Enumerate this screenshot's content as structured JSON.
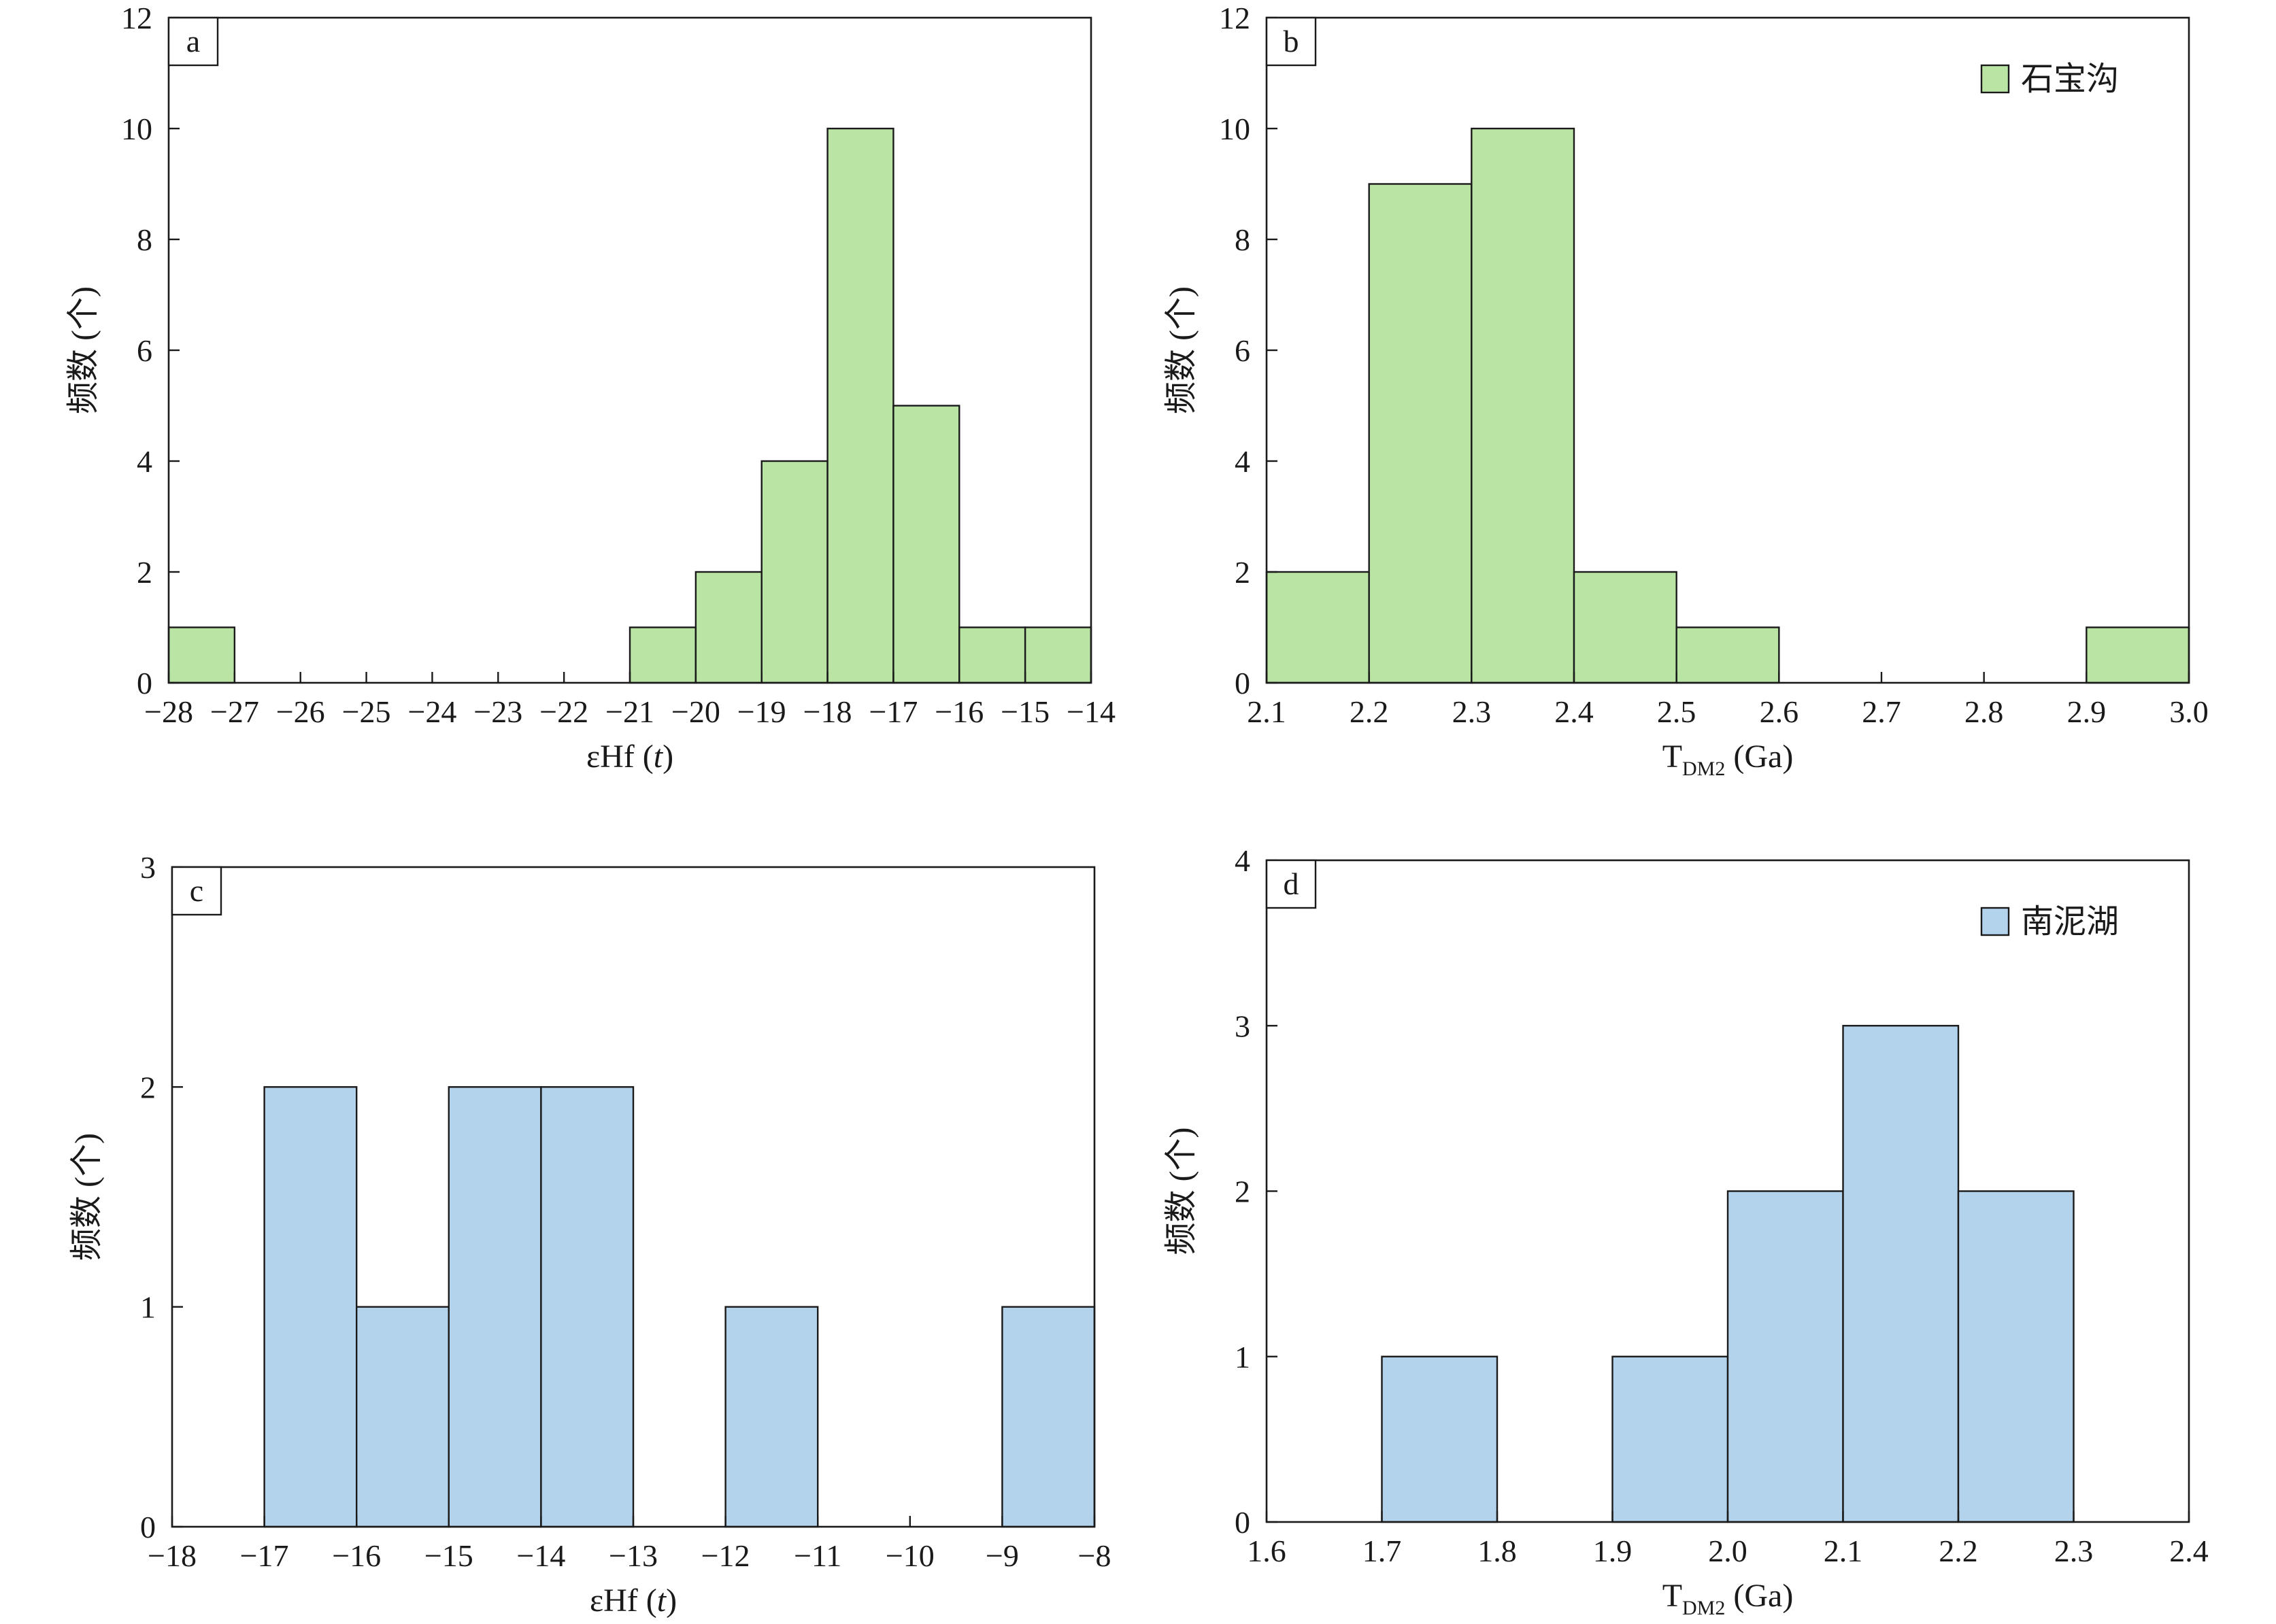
{
  "colors": {
    "green": "#b9e4a4",
    "blue": "#b3d2ec",
    "ink": "#1a1a1a"
  },
  "chart_data": [
    {
      "type": "bar",
      "id": "a",
      "panel_label": "a",
      "color": "#b9e4a4",
      "xlabel_parts": [
        "εHf (",
        "t",
        ")"
      ],
      "ylabel": "频数 (个)",
      "xlim": [
        -28,
        -14
      ],
      "ylim": [
        0,
        12
      ],
      "xticks": [
        -28,
        -27,
        -26,
        -25,
        -24,
        -23,
        -22,
        -21,
        -20,
        -19,
        -18,
        -17,
        -16,
        -15,
        -14
      ],
      "xtick_labels": [
        "−28",
        "−27",
        "−26",
        "−25",
        "−24",
        "−23",
        "−22",
        "−21",
        "−20",
        "−19",
        "−18",
        "−17",
        "−16",
        "−15",
        "−14"
      ],
      "yticks": [
        0,
        2,
        4,
        6,
        8,
        10,
        12
      ],
      "ytick_labels": [
        "0",
        "2",
        "4",
        "6",
        "8",
        "10",
        "12"
      ],
      "bins": [
        {
          "x0": -28.0,
          "x1": -27.0,
          "count": 1
        },
        {
          "x0": -21.0,
          "x1": -20.0,
          "count": 1
        },
        {
          "x0": -20.0,
          "x1": -19.0,
          "count": 2
        },
        {
          "x0": -19.0,
          "x1": -18.0,
          "count": 4
        },
        {
          "x0": -18.0,
          "x1": -17.0,
          "count": 10
        },
        {
          "x0": -17.0,
          "x1": -16.0,
          "count": 5
        },
        {
          "x0": -16.0,
          "x1": -15.0,
          "count": 1
        },
        {
          "x0": -15.0,
          "x1": -14.0,
          "count": 1
        }
      ],
      "legend": null
    },
    {
      "type": "bar",
      "id": "b",
      "panel_label": "b",
      "color": "#b9e4a4",
      "xlabel_parts": [
        "T",
        "DM2",
        " (Ga)"
      ],
      "ylabel": "频数 (个)",
      "xlim": [
        2.1,
        3.0
      ],
      "ylim": [
        0,
        12
      ],
      "xticks": [
        2.1,
        2.2,
        2.3,
        2.4,
        2.5,
        2.6,
        2.7,
        2.8,
        2.9,
        3.0
      ],
      "xtick_labels": [
        "2.1",
        "2.2",
        "2.3",
        "2.4",
        "2.5",
        "2.6",
        "2.7",
        "2.8",
        "2.9",
        "3.0"
      ],
      "yticks": [
        0,
        2,
        4,
        6,
        8,
        10,
        12
      ],
      "ytick_labels": [
        "0",
        "2",
        "4",
        "6",
        "8",
        "10",
        "12"
      ],
      "bins": [
        {
          "x0": 2.1,
          "x1": 2.2,
          "count": 2
        },
        {
          "x0": 2.2,
          "x1": 2.3,
          "count": 9
        },
        {
          "x0": 2.3,
          "x1": 2.4,
          "count": 10
        },
        {
          "x0": 2.4,
          "x1": 2.5,
          "count": 2
        },
        {
          "x0": 2.5,
          "x1": 2.6,
          "count": 1
        },
        {
          "x0": 2.9,
          "x1": 3.0,
          "count": 1
        }
      ],
      "legend": {
        "label": "石宝沟",
        "position": "top-right"
      }
    },
    {
      "type": "bar",
      "id": "c",
      "panel_label": "c",
      "color": "#b3d2ec",
      "xlabel_parts": [
        "εHf (",
        "t",
        ")"
      ],
      "ylabel": "频数 (个)",
      "xlim": [
        -18,
        -8
      ],
      "ylim": [
        0,
        3
      ],
      "xticks": [
        -18,
        -17,
        -16,
        -15,
        -14,
        -13,
        -12,
        -11,
        -10,
        -9,
        -8
      ],
      "xtick_labels": [
        "−18",
        "−17",
        "−16",
        "−15",
        "−14",
        "−13",
        "−12",
        "−11",
        "−10",
        "−9",
        "−8"
      ],
      "yticks": [
        0,
        1,
        2,
        3
      ],
      "ytick_labels": [
        "0",
        "1",
        "2",
        "3"
      ],
      "bins": [
        {
          "x0": -17.0,
          "x1": -16.0,
          "count": 2
        },
        {
          "x0": -16.0,
          "x1": -15.0,
          "count": 1
        },
        {
          "x0": -15.0,
          "x1": -14.0,
          "count": 2
        },
        {
          "x0": -14.0,
          "x1": -13.0,
          "count": 2
        },
        {
          "x0": -12.0,
          "x1": -11.0,
          "count": 1
        },
        {
          "x0": -9.0,
          "x1": -8.0,
          "count": 1
        }
      ],
      "legend": null
    },
    {
      "type": "bar",
      "id": "d",
      "panel_label": "d",
      "color": "#b3d2ec",
      "xlabel_parts": [
        "T",
        "DM2",
        " (Ga)"
      ],
      "ylabel": "频数 (个)",
      "xlim": [
        1.6,
        2.4
      ],
      "ylim": [
        0,
        4
      ],
      "xticks": [
        1.6,
        1.7,
        1.8,
        1.9,
        2.0,
        2.1,
        2.2,
        2.3,
        2.4
      ],
      "xtick_labels": [
        "1.6",
        "1.7",
        "1.8",
        "1.9",
        "2.0",
        "2.1",
        "2.2",
        "2.3",
        "2.4"
      ],
      "yticks": [
        0,
        1,
        2,
        3,
        4
      ],
      "ytick_labels": [
        "0",
        "1",
        "2",
        "3",
        "4"
      ],
      "bins": [
        {
          "x0": 1.7,
          "x1": 1.8,
          "count": 1
        },
        {
          "x0": 1.9,
          "x1": 2.0,
          "count": 1
        },
        {
          "x0": 2.0,
          "x1": 2.1,
          "count": 2
        },
        {
          "x0": 2.1,
          "x1": 2.2,
          "count": 3
        },
        {
          "x0": 2.2,
          "x1": 2.3,
          "count": 2
        }
      ],
      "legend": {
        "label": "南泥湖",
        "position": "top-right"
      }
    }
  ]
}
